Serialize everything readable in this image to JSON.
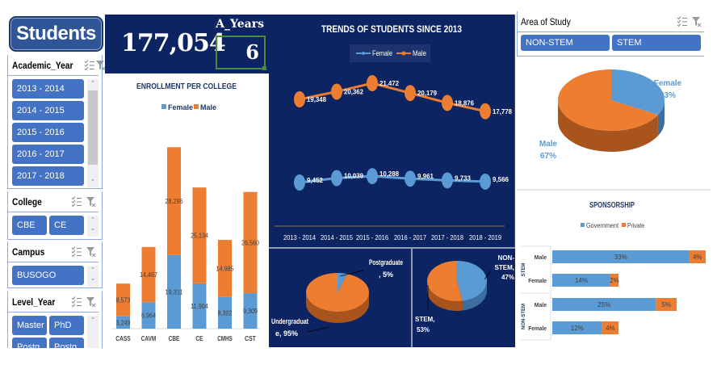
{
  "app": {
    "title": "Students"
  },
  "slicers": {
    "academic_year": {
      "label": "Academic_Year",
      "items": [
        "2013 - 2014",
        "2014 - 2015",
        "2015 - 2016",
        "2016 - 2017",
        "2017 - 2018"
      ]
    },
    "college": {
      "label": "College",
      "items": [
        "CBE",
        "CE"
      ]
    },
    "campus": {
      "label": "Campus",
      "items": [
        "BUSOGO"
      ]
    },
    "level_year": {
      "label": "Level_Year",
      "items": [
        "Master",
        "PhD",
        "Postg...",
        "Postg..."
      ]
    },
    "area_of_study": {
      "label": "Area of Study",
      "items": [
        "NON-STEM",
        "STEM"
      ]
    },
    "icons": {
      "multi_select": "multi-select-icon",
      "clear_filter": "clear-filter-icon",
      "scroll_up": "^",
      "scroll_down": "v"
    }
  },
  "kpi": {
    "total_students": "177,054",
    "years_label": "A_Years",
    "years_value": "6"
  },
  "colors": {
    "female": "#5b9bd5",
    "male": "#ed7d31",
    "navy": "#0c2461",
    "slicer_blue": "#4472c4",
    "title_navy": "#1f3864"
  },
  "chart_data": [
    {
      "id": "enrollment",
      "type": "bar",
      "stacked": true,
      "title": "ENROLLMENT PER COLLEGE",
      "legend": [
        "Female",
        "Male"
      ],
      "legend_position": "top",
      "categories": [
        "CASS",
        "CAVM",
        "CBE",
        "CE",
        "CMHS",
        "CST"
      ],
      "series": [
        {
          "name": "Female",
          "values": [
            3249,
            6964,
            19311,
            11904,
            8302,
            9309
          ],
          "labels": [
            "3,249",
            "6,964",
            "19,311",
            "11,904",
            "8,302",
            "9,309"
          ]
        },
        {
          "name": "Male",
          "values": [
            8573,
            14467,
            28296,
            25134,
            14985,
            26560
          ],
          "labels": [
            "8,573",
            "14,467",
            "28,296",
            "25,134",
            "14,985",
            "26,560"
          ]
        }
      ],
      "ylim": [
        0,
        50000
      ],
      "grid": false
    },
    {
      "id": "trend",
      "type": "line",
      "title": "TRENDS OF STUDENTS SINCE 2013",
      "legend": [
        "Female",
        "Male"
      ],
      "legend_position": "top",
      "categories": [
        "2013 - 2014",
        "2014 - 2015",
        "2015 - 2016",
        "2016 - 2017",
        "2017 - 2018",
        "2018 - 2019"
      ],
      "series": [
        {
          "name": "Female",
          "values": [
            9452,
            10039,
            10288,
            9961,
            9733,
            9566
          ],
          "labels": [
            "9,452",
            "10,039",
            "10,288",
            "9,961",
            "9,733",
            "9,566"
          ]
        },
        {
          "name": "Male",
          "values": [
            19348,
            20362,
            21472,
            20179,
            18876,
            17778
          ],
          "labels": [
            "19,348",
            "20,362",
            "21,472",
            "20,179",
            "18,876",
            "17,778"
          ]
        }
      ],
      "grid": false
    },
    {
      "id": "level",
      "type": "pie",
      "slices": [
        {
          "label": "Postgraduate",
          "pct": 5,
          "text": "Postgraduate, 5%"
        },
        {
          "label": "Undergraduate",
          "pct": 95,
          "text": "Undergraduate, 95%"
        }
      ]
    },
    {
      "id": "stem",
      "type": "pie",
      "slices": [
        {
          "label": "NON-STEM",
          "pct": 47,
          "text": "NON-STEM, 47%"
        },
        {
          "label": "STEM",
          "pct": 53,
          "text": "STEM, 53%"
        }
      ]
    },
    {
      "id": "gender",
      "type": "pie",
      "slices": [
        {
          "label": "Female",
          "pct": 33,
          "text": "33%"
        },
        {
          "label": "Male",
          "pct": 67,
          "text": "67%"
        }
      ]
    },
    {
      "id": "sponsorship",
      "type": "bar",
      "orientation": "horizontal",
      "stacked": true,
      "title": "SPONSORSHIP",
      "legend": [
        "Government",
        "Private"
      ],
      "legend_position": "top",
      "groups": [
        "STEM",
        "NON-STEM"
      ],
      "rows": [
        {
          "group": "STEM",
          "label": "Male",
          "government": 33,
          "private": 4
        },
        {
          "group": "STEM",
          "label": "Female",
          "government": 14,
          "private": 2
        },
        {
          "group": "NON-STEM",
          "label": "Male",
          "government": 25,
          "private": 5
        },
        {
          "group": "NON-STEM",
          "label": "Female",
          "government": 12,
          "private": 4
        }
      ]
    }
  ]
}
